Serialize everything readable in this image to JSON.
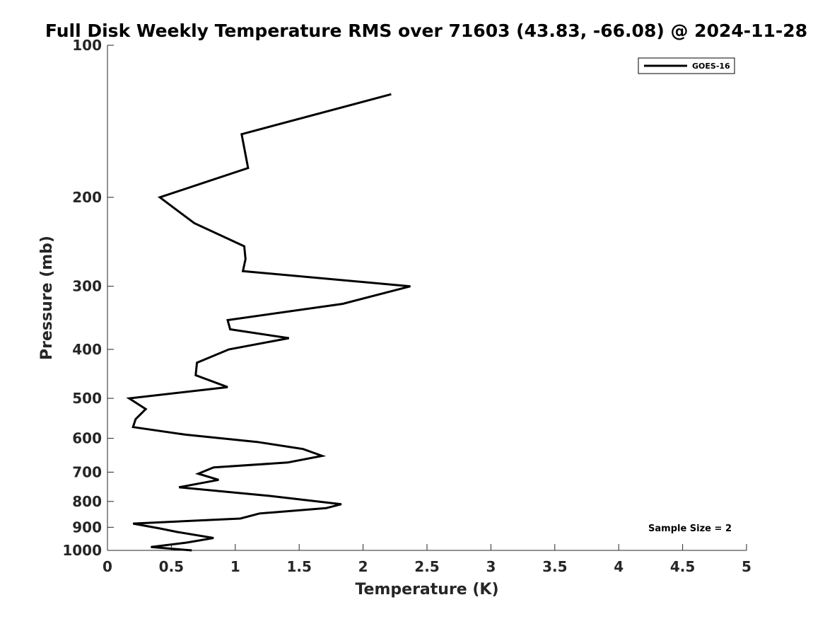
{
  "chart_data": {
    "type": "line",
    "title": "Full Disk Weekly Temperature RMS over 71603 (43.83, -66.08) @ 2024-11-28",
    "xlabel": "Temperature (K)",
    "ylabel": "Pressure (mb)",
    "xlim": [
      0,
      5
    ],
    "ylim": [
      100,
      1000
    ],
    "yscale": "log",
    "xticks": [
      "0",
      "0.5",
      "1",
      "1.5",
      "2",
      "2.5",
      "3",
      "3.5",
      "4",
      "4.5",
      "5"
    ],
    "yticks": [
      "100",
      "200",
      "300",
      "400",
      "500",
      "600",
      "700",
      "800",
      "900",
      "1000"
    ],
    "legend": {
      "position": "top-right",
      "entries": [
        "GOES-16"
      ]
    },
    "annotation": "Sample Size = 2",
    "series": [
      {
        "name": "GOES-16",
        "color": "#000000",
        "temperature": [
          2.22,
          1.05,
          1.1,
          0.41,
          0.68,
          1.07,
          1.08,
          1.06,
          2.37,
          1.84,
          0.94,
          0.96,
          1.42,
          0.95,
          0.7,
          0.69,
          0.94,
          0.17,
          0.3,
          0.22,
          0.2,
          0.61,
          1.17,
          1.53,
          1.68,
          1.41,
          0.83,
          0.71,
          0.87,
          0.56,
          1.27,
          1.83,
          1.71,
          1.19,
          1.04,
          0.2,
          0.41,
          0.55,
          0.83,
          0.62,
          0.34,
          0.66
        ],
        "pressure": [
          125,
          150,
          175,
          200,
          225,
          250,
          265,
          280,
          300,
          325,
          350,
          365,
          380,
          400,
          425,
          450,
          475,
          500,
          525,
          550,
          570,
          590,
          610,
          630,
          650,
          670,
          685,
          705,
          725,
          750,
          780,
          810,
          825,
          845,
          865,
          885,
          905,
          920,
          945,
          965,
          985,
          1000
        ]
      }
    ]
  }
}
